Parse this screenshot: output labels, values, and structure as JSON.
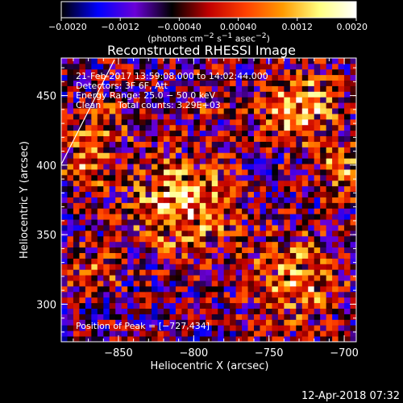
{
  "chart_data": {
    "type": "heatmap",
    "title": "Reconstructed RHESSI Image",
    "xlabel": "Heliocentric X (arcsec)",
    "ylabel": "Heliocentric Y (arcsec)",
    "xlim": [
      -888,
      -692
    ],
    "ylim": [
      273,
      477
    ],
    "x_ticks": [
      -850,
      -800,
      -750,
      -700
    ],
    "y_ticks": [
      300,
      350,
      400,
      450
    ],
    "x_tick_labels": [
      "−850",
      "−800",
      "−750",
      "−700"
    ],
    "y_tick_labels": [
      "300",
      "350",
      "400",
      "450"
    ],
    "colorbar": {
      "range": [
        -0.002,
        0.002
      ],
      "ticks": [
        -0.002,
        -0.0012,
        -0.0004,
        0.0004,
        0.0012,
        0.002
      ],
      "tick_labels": [
        "−0.0020",
        "−0.0012",
        "−0.00040",
        "0.00040",
        "0.0012",
        "0.0020"
      ],
      "units_text": "(photons cm<sup>−2</sup> s<sup>−1</sup> asec<sup>−2</sup>)",
      "color_stops": [
        "#000000",
        "#0000ff",
        "#6a00d8",
        "#000000",
        "#c00000",
        "#ff4000",
        "#ff9a00",
        "#ffff80",
        "#ffffff"
      ]
    },
    "annotations": {
      "time_range": "21-Feb-2017 13:59:08.000 to 14:02:44.000",
      "detectors": "Detectors: 3F 6F, Att",
      "energy": "Energy Range: 25.0 − 50.0 keV",
      "algorithm": "Clean",
      "total_counts": "Total counts: 3.29E+03",
      "peak": "Position of Peak = [−727,434]"
    },
    "peak": {
      "x": -727,
      "y": 434
    },
    "sources": [
      {
        "x": -808,
        "y": 372,
        "intensity": 0.0019,
        "radius_arcsec": 24
      },
      {
        "x": -730,
        "y": 440,
        "intensity": 0.002,
        "radius_arcsec": 18
      },
      {
        "x": -735,
        "y": 318,
        "intensity": 0.0015,
        "radius_arcsec": 22
      },
      {
        "x": -872,
        "y": 400,
        "intensity": 0.0012,
        "radius_arcsec": 12
      },
      {
        "x": -860,
        "y": 430,
        "intensity": 0.001,
        "radius_arcsec": 14
      },
      {
        "x": -866,
        "y": 325,
        "intensity": 0.0011,
        "radius_arcsec": 12
      },
      {
        "x": -700,
        "y": 395,
        "intensity": 0.0012,
        "radius_arcsec": 14
      },
      {
        "x": -790,
        "y": 450,
        "intensity": 0.0007,
        "radius_arcsec": 14
      }
    ],
    "grid": false
  },
  "footer": {
    "timestamp": "12-Apr-2018 07:32"
  }
}
